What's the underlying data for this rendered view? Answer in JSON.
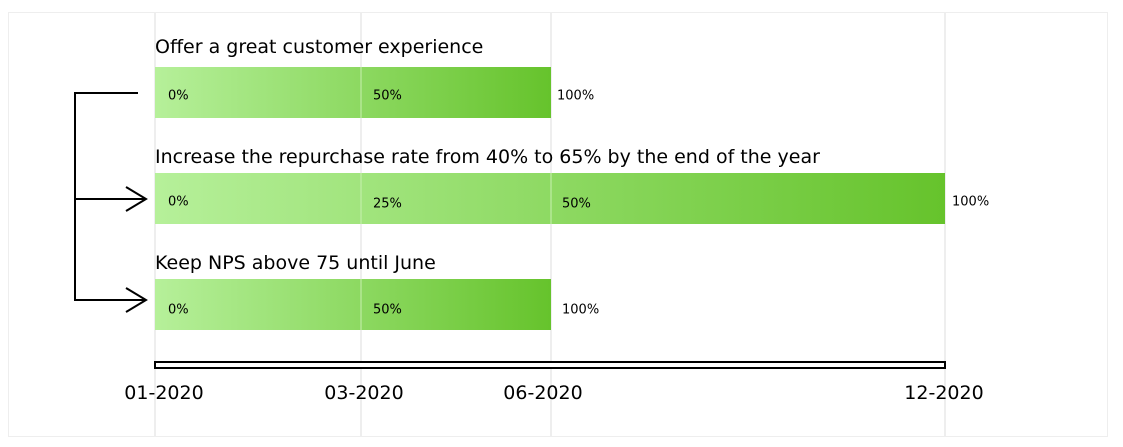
{
  "goals": [
    {
      "title": "Offer a great customer experience",
      "labels": [
        "0%",
        "50%",
        "100%"
      ]
    },
    {
      "title": "Increase the repurchase rate from 40% to 65% by the end of the year",
      "labels": [
        "0%",
        "25%",
        "50%",
        "100%"
      ]
    },
    {
      "title": "Keep NPS above 75 until June",
      "labels": [
        "0%",
        "50%",
        "100%"
      ]
    }
  ],
  "axis": [
    "01-2020",
    "03-2020",
    "06-2020",
    "12-2020"
  ]
}
